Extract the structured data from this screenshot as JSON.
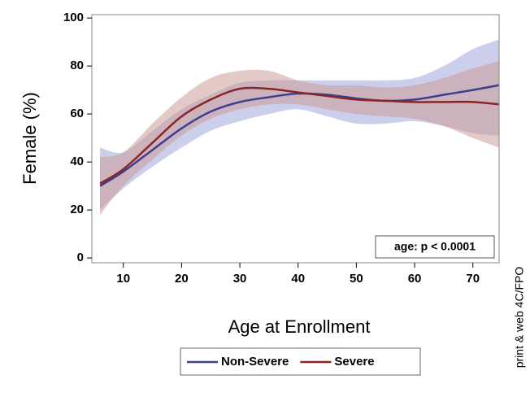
{
  "chart_data": {
    "type": "line",
    "x_label": "Age at Enrollment",
    "y_label": "Female (%)",
    "annotation": "age: p < 0.0001",
    "side_note": "print & web 4C/FPO",
    "x": [
      6,
      10,
      15,
      20,
      25,
      30,
      35,
      40,
      45,
      50,
      55,
      60,
      65,
      70,
      74.5
    ],
    "series": [
      {
        "name": "Non-Severe",
        "color": "#3b3f8f",
        "band_color": "#9a9fd8",
        "values": [
          30,
          36,
          45,
          54,
          61,
          65,
          67,
          68.5,
          68,
          66.5,
          65.5,
          66,
          68,
          70,
          72
        ],
        "lower": [
          20,
          29,
          38,
          46,
          53,
          57,
          60,
          62,
          59,
          56,
          56,
          57,
          55,
          52,
          51
        ],
        "upper": [
          46,
          44,
          53,
          62,
          68,
          73,
          74,
          74,
          74,
          74,
          74,
          75,
          80,
          87,
          91
        ]
      },
      {
        "name": "Severe",
        "color": "#8b2525",
        "band_color": "#c99690",
        "values": [
          31,
          37,
          48,
          59,
          66,
          70.5,
          70.5,
          69,
          67.5,
          66,
          65.5,
          65,
          65,
          65,
          64
        ],
        "lower": [
          18,
          30,
          41,
          51,
          58,
          62,
          64,
          64,
          62,
          60,
          59,
          58,
          55,
          50,
          46
        ],
        "upper": [
          42,
          44,
          56,
          67,
          75,
          78,
          78,
          74,
          72,
          72,
          71,
          72,
          75,
          79,
          82
        ]
      }
    ],
    "xlim": [
      4.6,
      74.5
    ],
    "ylim": [
      -2,
      101.4
    ],
    "xticks": [
      10,
      20,
      30,
      40,
      50,
      60,
      70
    ],
    "yticks": [
      0,
      20,
      40,
      60,
      80,
      100
    ],
    "legend": "bottom"
  }
}
